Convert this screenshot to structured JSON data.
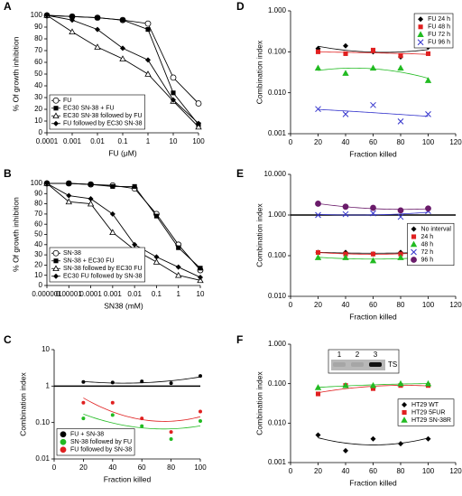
{
  "chart_data": [
    {
      "type": "line",
      "label": "A",
      "xlabel": "FU (μM)",
      "ylabel": "% Of growth inhibition",
      "xscale": "log",
      "yscale": "linear",
      "x": [
        0.0001,
        0.001,
        0.01,
        0.1,
        1,
        10,
        100
      ],
      "xlim": [
        0.0001,
        100
      ],
      "xticks": [
        0.0001,
        0.001,
        0.01,
        0.1,
        1,
        10,
        100
      ],
      "ylim": [
        0,
        100
      ],
      "yticks": [
        0,
        10,
        20,
        30,
        40,
        50,
        60,
        70,
        80,
        90,
        100
      ],
      "legend": "lower left",
      "series": [
        {
          "name": "FU",
          "color": "#000000",
          "marker": "circle-open",
          "values": [
            100,
            99,
            98,
            96,
            93,
            47,
            25
          ]
        },
        {
          "name": "EC30 SN-38 + FU",
          "color": "#000000",
          "marker": "square",
          "values": [
            100,
            99,
            98,
            96,
            88,
            34,
            7
          ]
        },
        {
          "name": "EC30 SN-38 followed by FU",
          "color": "#000000",
          "marker": "triangle-open",
          "values": [
            100,
            86,
            73,
            63,
            50,
            27,
            5
          ]
        },
        {
          "name": "FU followed by EC30 SN-38",
          "color": "#000000",
          "marker": "diamond",
          "values": [
            100,
            96,
            88,
            72,
            62,
            28,
            8
          ]
        }
      ]
    },
    {
      "type": "line",
      "label": "B",
      "xlabel": "SN38 (mM)",
      "ylabel": "% Of growth inhibition",
      "xscale": "log",
      "yscale": "linear",
      "x": [
        1e-06,
        1e-05,
        0.0001,
        0.001,
        0.01,
        0.1,
        1,
        10
      ],
      "xlim": [
        1e-06,
        10
      ],
      "xticks": [
        1e-06,
        1e-05,
        0.0001,
        0.001,
        0.01,
        0.1,
        1,
        10
      ],
      "ylim": [
        0,
        100
      ],
      "yticks": [
        0,
        10,
        20,
        30,
        40,
        50,
        60,
        70,
        80,
        90,
        100
      ],
      "legend": "lower left",
      "series": [
        {
          "name": "SN-38",
          "color": "#000000",
          "marker": "circle-open",
          "values": [
            100,
            100,
            99,
            98,
            95,
            70,
            40,
            15
          ]
        },
        {
          "name": "SN-38 + EC30 FU",
          "color": "#000000",
          "marker": "square",
          "values": [
            100,
            100,
            99,
            97,
            97,
            68,
            37,
            17
          ]
        },
        {
          "name": "SN-38 followed by EC30 FU",
          "color": "#000000",
          "marker": "triangle-open",
          "values": [
            100,
            82,
            80,
            52,
            35,
            23,
            10,
            5
          ]
        },
        {
          "name": "EC30 FU followed by SN-38",
          "color": "#000000",
          "marker": "diamond",
          "values": [
            100,
            88,
            85,
            70,
            40,
            28,
            18,
            8
          ]
        }
      ]
    },
    {
      "type": "scatter",
      "label": "C",
      "xlabel": "Fraction killed",
      "ylabel": "Combination index",
      "xscale": "linear",
      "yscale": "log",
      "fit": "quadratic",
      "x": [
        20,
        40,
        60,
        80,
        100
      ],
      "xlim": [
        0,
        100
      ],
      "xticks": [
        0,
        20,
        40,
        60,
        80,
        100
      ],
      "ylim": [
        0.01,
        10
      ],
      "yticks": [
        0.01,
        {
          "value": 0.1,
          "label": "0.10"
        },
        1,
        10
      ],
      "reference_line": 1,
      "legend": "lower left",
      "series": [
        {
          "name": "FU + SN-38",
          "color": "#000000",
          "marker": "dot",
          "values": [
            1.3,
            1.25,
            1.35,
            1.2,
            1.9
          ]
        },
        {
          "name": "SN-38 followed by FU",
          "color": "#22bb22",
          "marker": "dot",
          "values": [
            0.13,
            0.16,
            0.08,
            0.035,
            0.11
          ]
        },
        {
          "name": "FU followed by SN-38",
          "color": "#e02020",
          "marker": "dot",
          "values": [
            0.35,
            0.35,
            0.13,
            0.055,
            0.2
          ]
        }
      ]
    },
    {
      "type": "scatter",
      "label": "D",
      "xlabel": "Fraction killed",
      "ylabel": "Combination index",
      "xscale": "linear",
      "yscale": "log",
      "fit": "quadratic",
      "x": [
        20,
        40,
        60,
        80,
        100
      ],
      "xlim": [
        0,
        120
      ],
      "xticks": [
        0,
        20,
        40,
        60,
        80,
        100,
        120
      ],
      "ylim": [
        0.001,
        1
      ],
      "yticks": [
        {
          "value": 0.001,
          "label": "0.001"
        },
        {
          "value": 0.01,
          "label": "0.010"
        },
        {
          "value": 0.1,
          "label": "0.100"
        },
        {
          "value": 1,
          "label": "1.000"
        }
      ],
      "legend": "upper right",
      "series": [
        {
          "name": "FU 24 h",
          "color": "#000000",
          "marker": "diamond",
          "values": [
            0.12,
            0.14,
            0.1,
            0.075,
            0.13
          ]
        },
        {
          "name": "FU 48 h",
          "color": "#e02020",
          "marker": "square",
          "values": [
            0.1,
            0.09,
            0.11,
            0.08,
            0.09
          ]
        },
        {
          "name": "FU 72 h",
          "color": "#22bb22",
          "marker": "triangle",
          "values": [
            0.04,
            0.03,
            0.04,
            0.04,
            0.02
          ]
        },
        {
          "name": "FU 96 h",
          "color": "#3333cc",
          "marker": "x",
          "values": [
            0.004,
            0.003,
            0.005,
            0.002,
            0.003
          ]
        }
      ]
    },
    {
      "type": "scatter",
      "label": "E",
      "xlabel": "Fraction killed",
      "ylabel": "Combination index",
      "xscale": "linear",
      "yscale": "log",
      "fit": "quadratic",
      "x": [
        20,
        40,
        60,
        80,
        100
      ],
      "xlim": [
        0,
        120
      ],
      "xticks": [
        0,
        20,
        40,
        60,
        80,
        100,
        120
      ],
      "ylim": [
        0.01,
        10
      ],
      "yticks": [
        {
          "value": 0.01,
          "label": "0.010"
        },
        {
          "value": 0.1,
          "label": "0.100"
        },
        {
          "value": 1,
          "label": "1.000"
        },
        {
          "value": 10,
          "label": "10.000"
        }
      ],
      "reference_line": 1,
      "legend": "center right",
      "series": [
        {
          "name": "No interval",
          "color": "#000000",
          "marker": "diamond",
          "values": [
            0.12,
            0.12,
            0.11,
            0.12,
            0.12
          ]
        },
        {
          "name": "24 h",
          "color": "#e02020",
          "marker": "square",
          "values": [
            0.12,
            0.11,
            0.11,
            0.11,
            0.12
          ]
        },
        {
          "name": "48 h",
          "color": "#22bb22",
          "marker": "triangle",
          "values": [
            0.09,
            0.09,
            0.075,
            0.09,
            0.09
          ]
        },
        {
          "name": "72 h",
          "color": "#3333cc",
          "marker": "x",
          "values": [
            1.0,
            1.05,
            1.1,
            0.9,
            1.25
          ]
        },
        {
          "name": "96 h",
          "color": "#6a1b6a",
          "marker": "circle",
          "values": [
            1.9,
            1.6,
            1.5,
            1.3,
            1.45
          ]
        }
      ]
    },
    {
      "type": "scatter",
      "label": "F",
      "xlabel": "Fraction killed",
      "ylabel": "Combination index",
      "xscale": "linear",
      "yscale": "log",
      "fit": "quadratic",
      "x": [
        20,
        40,
        60,
        80,
        100
      ],
      "xlim": [
        0,
        120
      ],
      "xticks": [
        0,
        20,
        40,
        60,
        80,
        100,
        120
      ],
      "ylim": [
        0.001,
        1
      ],
      "yticks": [
        {
          "value": 0.001,
          "label": "0.001"
        },
        {
          "value": 0.01,
          "label": "0.010"
        },
        {
          "value": 0.1,
          "label": "0.100"
        },
        {
          "value": 1,
          "label": "1.000"
        }
      ],
      "legend": "center right",
      "inset_lanes": [
        "1",
        "2",
        "3"
      ],
      "inset_band": "TS",
      "series": [
        {
          "name": "HT29 WT",
          "color": "#000000",
          "marker": "diamond",
          "values": [
            0.005,
            0.002,
            0.004,
            0.003,
            0.004
          ]
        },
        {
          "name": "HT29 5FUR",
          "color": "#e02020",
          "marker": "square",
          "values": [
            0.055,
            0.09,
            0.075,
            0.09,
            0.09
          ]
        },
        {
          "name": "HT29 SN-38R",
          "color": "#22bb22",
          "marker": "triangle",
          "values": [
            0.08,
            0.09,
            0.09,
            0.1,
            0.1
          ]
        }
      ]
    }
  ]
}
